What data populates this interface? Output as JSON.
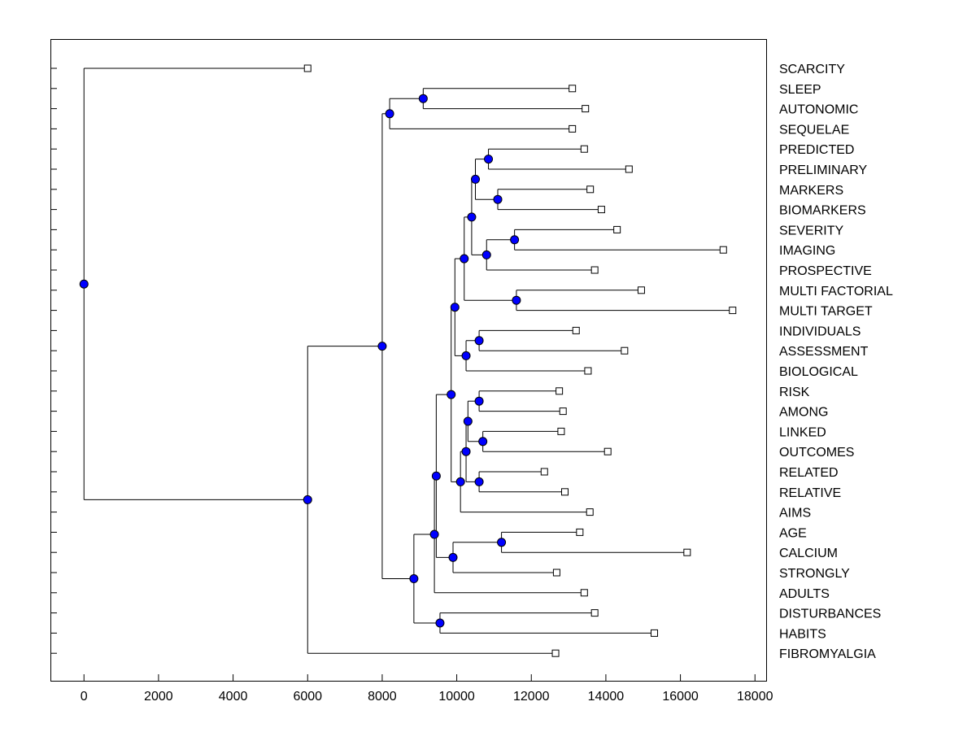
{
  "chart_data": {
    "type": "dendrogram",
    "orientation": "horizontal",
    "title": "",
    "xlabel": "",
    "ylabel": "",
    "xlim": [
      -900,
      18300
    ],
    "xticks": [
      0,
      2000,
      4000,
      6000,
      8000,
      10000,
      12000,
      14000,
      16000,
      18000
    ],
    "colors": {
      "node_fill": "#0000ff",
      "line": "#000000",
      "leaf_fill": "#ffffff"
    },
    "leaves": [
      {
        "id": "L1",
        "label": "SCARCITY",
        "x": 6000
      },
      {
        "id": "L2",
        "label": "SLEEP",
        "x": 13100
      },
      {
        "id": "L3",
        "label": "AUTONOMIC",
        "x": 13450
      },
      {
        "id": "L4",
        "label": "SEQUELAE",
        "x": 13100
      },
      {
        "id": "L5",
        "label": "PREDICTED",
        "x": 13420
      },
      {
        "id": "L6",
        "label": "PRELIMINARY",
        "x": 14620
      },
      {
        "id": "L7",
        "label": "MARKERS",
        "x": 13580
      },
      {
        "id": "L8",
        "label": "BIOMARKERS",
        "x": 13880
      },
      {
        "id": "L9",
        "label": "SEVERITY",
        "x": 14300
      },
      {
        "id": "L10",
        "label": "IMAGING",
        "x": 17150
      },
      {
        "id": "L11",
        "label": "PROSPECTIVE",
        "x": 13700
      },
      {
        "id": "L12",
        "label": "MULTI FACTORIAL",
        "x": 14950
      },
      {
        "id": "L13",
        "label": "MULTI TARGET",
        "x": 17400
      },
      {
        "id": "L14",
        "label": "INDIVIDUALS",
        "x": 13200
      },
      {
        "id": "L15",
        "label": "ASSESSMENT",
        "x": 14500
      },
      {
        "id": "L16",
        "label": "BIOLOGICAL",
        "x": 13520
      },
      {
        "id": "L17",
        "label": "RISK",
        "x": 12750
      },
      {
        "id": "L18",
        "label": "AMONG",
        "x": 12850
      },
      {
        "id": "L19",
        "label": "LINKED",
        "x": 12800
      },
      {
        "id": "L20",
        "label": "OUTCOMES",
        "x": 14050
      },
      {
        "id": "L21",
        "label": "RELATED",
        "x": 12350
      },
      {
        "id": "L22",
        "label": "RELATIVE",
        "x": 12900
      },
      {
        "id": "L23",
        "label": "AIMS",
        "x": 13570
      },
      {
        "id": "L24",
        "label": "AGE",
        "x": 13300
      },
      {
        "id": "L25",
        "label": "CALCIUM",
        "x": 16180
      },
      {
        "id": "L26",
        "label": "STRONGLY",
        "x": 12680
      },
      {
        "id": "L27",
        "label": "ADULTS",
        "x": 13420
      },
      {
        "id": "L28",
        "label": "DISTURBANCES",
        "x": 13700
      },
      {
        "id": "L29",
        "label": "HABITS",
        "x": 15300
      },
      {
        "id": "L30",
        "label": "FIBROMYALGIA",
        "x": 12650
      }
    ],
    "merges": [
      {
        "id": "N1",
        "x": 9100,
        "children": [
          "L2",
          "L3"
        ]
      },
      {
        "id": "N2",
        "x": 8200,
        "children": [
          "N1",
          "L4"
        ]
      },
      {
        "id": "N3",
        "x": 10850,
        "children": [
          "L5",
          "L6"
        ]
      },
      {
        "id": "N4",
        "x": 11100,
        "children": [
          "L7",
          "L8"
        ]
      },
      {
        "id": "N5",
        "x": 10500,
        "children": [
          "N3",
          "N4"
        ]
      },
      {
        "id": "N6",
        "x": 11550,
        "children": [
          "L9",
          "L10"
        ]
      },
      {
        "id": "N7",
        "x": 10800,
        "children": [
          "N6",
          "L11"
        ]
      },
      {
        "id": "N8",
        "x": 10400,
        "children": [
          "N5",
          "N7"
        ]
      },
      {
        "id": "N9",
        "x": 11600,
        "children": [
          "L12",
          "L13"
        ]
      },
      {
        "id": "N10",
        "x": 10200,
        "children": [
          "N8",
          "N9"
        ]
      },
      {
        "id": "N11",
        "x": 10600,
        "children": [
          "L14",
          "L15"
        ]
      },
      {
        "id": "N12",
        "x": 10250,
        "children": [
          "N11",
          "L16"
        ]
      },
      {
        "id": "N13",
        "x": 9950,
        "children": [
          "N10",
          "N12"
        ]
      },
      {
        "id": "N14",
        "x": 10600,
        "children": [
          "L17",
          "L18"
        ]
      },
      {
        "id": "N15",
        "x": 10700,
        "children": [
          "L19",
          "L20"
        ]
      },
      {
        "id": "N16",
        "x": 10300,
        "children": [
          "N14",
          "N15"
        ]
      },
      {
        "id": "N17",
        "x": 10600,
        "children": [
          "L21",
          "L22"
        ]
      },
      {
        "id": "N18",
        "x": 10250,
        "children": [
          "N16",
          "N17"
        ]
      },
      {
        "id": "N19",
        "x": 10100,
        "children": [
          "N18",
          "L23"
        ]
      },
      {
        "id": "N20",
        "x": 9850,
        "children": [
          "N13",
          "N19"
        ]
      },
      {
        "id": "N21",
        "x": 11200,
        "children": [
          "L24",
          "L25"
        ]
      },
      {
        "id": "N22",
        "x": 9900,
        "children": [
          "N21",
          "L26"
        ]
      },
      {
        "id": "N23",
        "x": 9450,
        "children": [
          "N20",
          "N22"
        ]
      },
      {
        "id": "N24",
        "x": 9400,
        "children": [
          "N23",
          "L27"
        ]
      },
      {
        "id": "N25",
        "x": 9550,
        "children": [
          "L28",
          "L29"
        ]
      },
      {
        "id": "N26",
        "x": 8850,
        "children": [
          "N24",
          "N25"
        ]
      },
      {
        "id": "N27",
        "x": 8000,
        "children": [
          "N2",
          "N26"
        ]
      },
      {
        "id": "N28",
        "x": 6000,
        "children": [
          "N27",
          "L30"
        ]
      },
      {
        "id": "N29",
        "x": 0,
        "children": [
          "L1",
          "N28"
        ]
      }
    ]
  }
}
